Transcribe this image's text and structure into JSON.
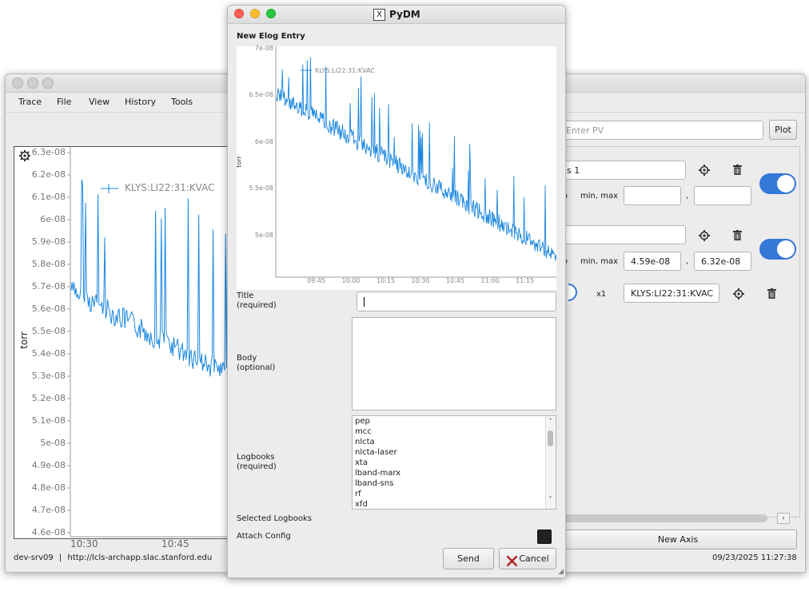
{
  "background_window": {
    "menu": [
      "Trace",
      "File",
      "View",
      "History",
      "Tools"
    ],
    "plot": {
      "y_ticks": [
        "6.3e-08",
        "6.2e-08",
        "6.1e-08",
        "6e-08",
        "5.9e-08",
        "5.8e-08",
        "5.7e-08",
        "5.6e-08",
        "5.5e-08",
        "5.4e-08",
        "5.3e-08",
        "5.2e-08",
        "5.1e-08",
        "5e-08",
        "4.9e-08",
        "4.8e-08",
        "4.7e-08",
        "4.6e-08"
      ],
      "x_ticks": [
        "10:30",
        "10:45"
      ],
      "y_label": "torr",
      "legend": "KLYS:LI22:31:KVAC"
    },
    "right_panel": {
      "pv_placeholder": "Enter PV",
      "plot_button": "Plot",
      "axis1_name_partial": "s 1",
      "axis1_range_label": "min, max",
      "axis1_auto_partial": "to",
      "axis1_min": "",
      "axis1_max": "",
      "axis2_range_label": "min, max",
      "axis2_auto_partial": "to",
      "axis2_min": "4.59e-08",
      "axis2_max": "6.32e-08",
      "comma": ",",
      "curve_axis": "x1",
      "curve_pv": "KLYS:LI22:31:KVAC",
      "new_axis_button": "New Axis"
    },
    "status": {
      "server": "dev-srv09",
      "separator": "|",
      "url": "http://lcls-archapp.slac.stanford.edu",
      "timestamp": "09/23/2025 11:27:38"
    }
  },
  "dialog": {
    "title": "PyDM",
    "heading": "New Elog Entry",
    "plot": {
      "y_ticks": [
        "7e-08",
        "6.5e-08",
        "6e-08",
        "5.5e-08",
        "5e-08"
      ],
      "x_ticks": [
        "09:45",
        "10:00",
        "10:15",
        "10:30",
        "10:45",
        "11:00",
        "11:15"
      ],
      "y_label": "torr",
      "legend": "KLYS:LI22:31:KVAC"
    },
    "title_label": "Title\n(required)",
    "title_value": "",
    "body_label": "Body\n(optional)",
    "body_value": "",
    "logbooks_label": "Logbooks\n(required)",
    "logbooks": [
      "pep",
      "mcc",
      "nlcta",
      "nlcta-laser",
      "xta",
      "lband-marx",
      "lband-sns",
      "rf",
      "xfd"
    ],
    "selected_logbooks_label": "Selected Logbooks",
    "attach_config_label": "Attach Config",
    "send_button": "Send",
    "cancel_button": "Cancel"
  },
  "colors": {
    "trace": "#1a86e0",
    "toggle_on": "#3478d8",
    "close": "#fe5f57",
    "minimize": "#febc2e",
    "zoom": "#28c840"
  }
}
